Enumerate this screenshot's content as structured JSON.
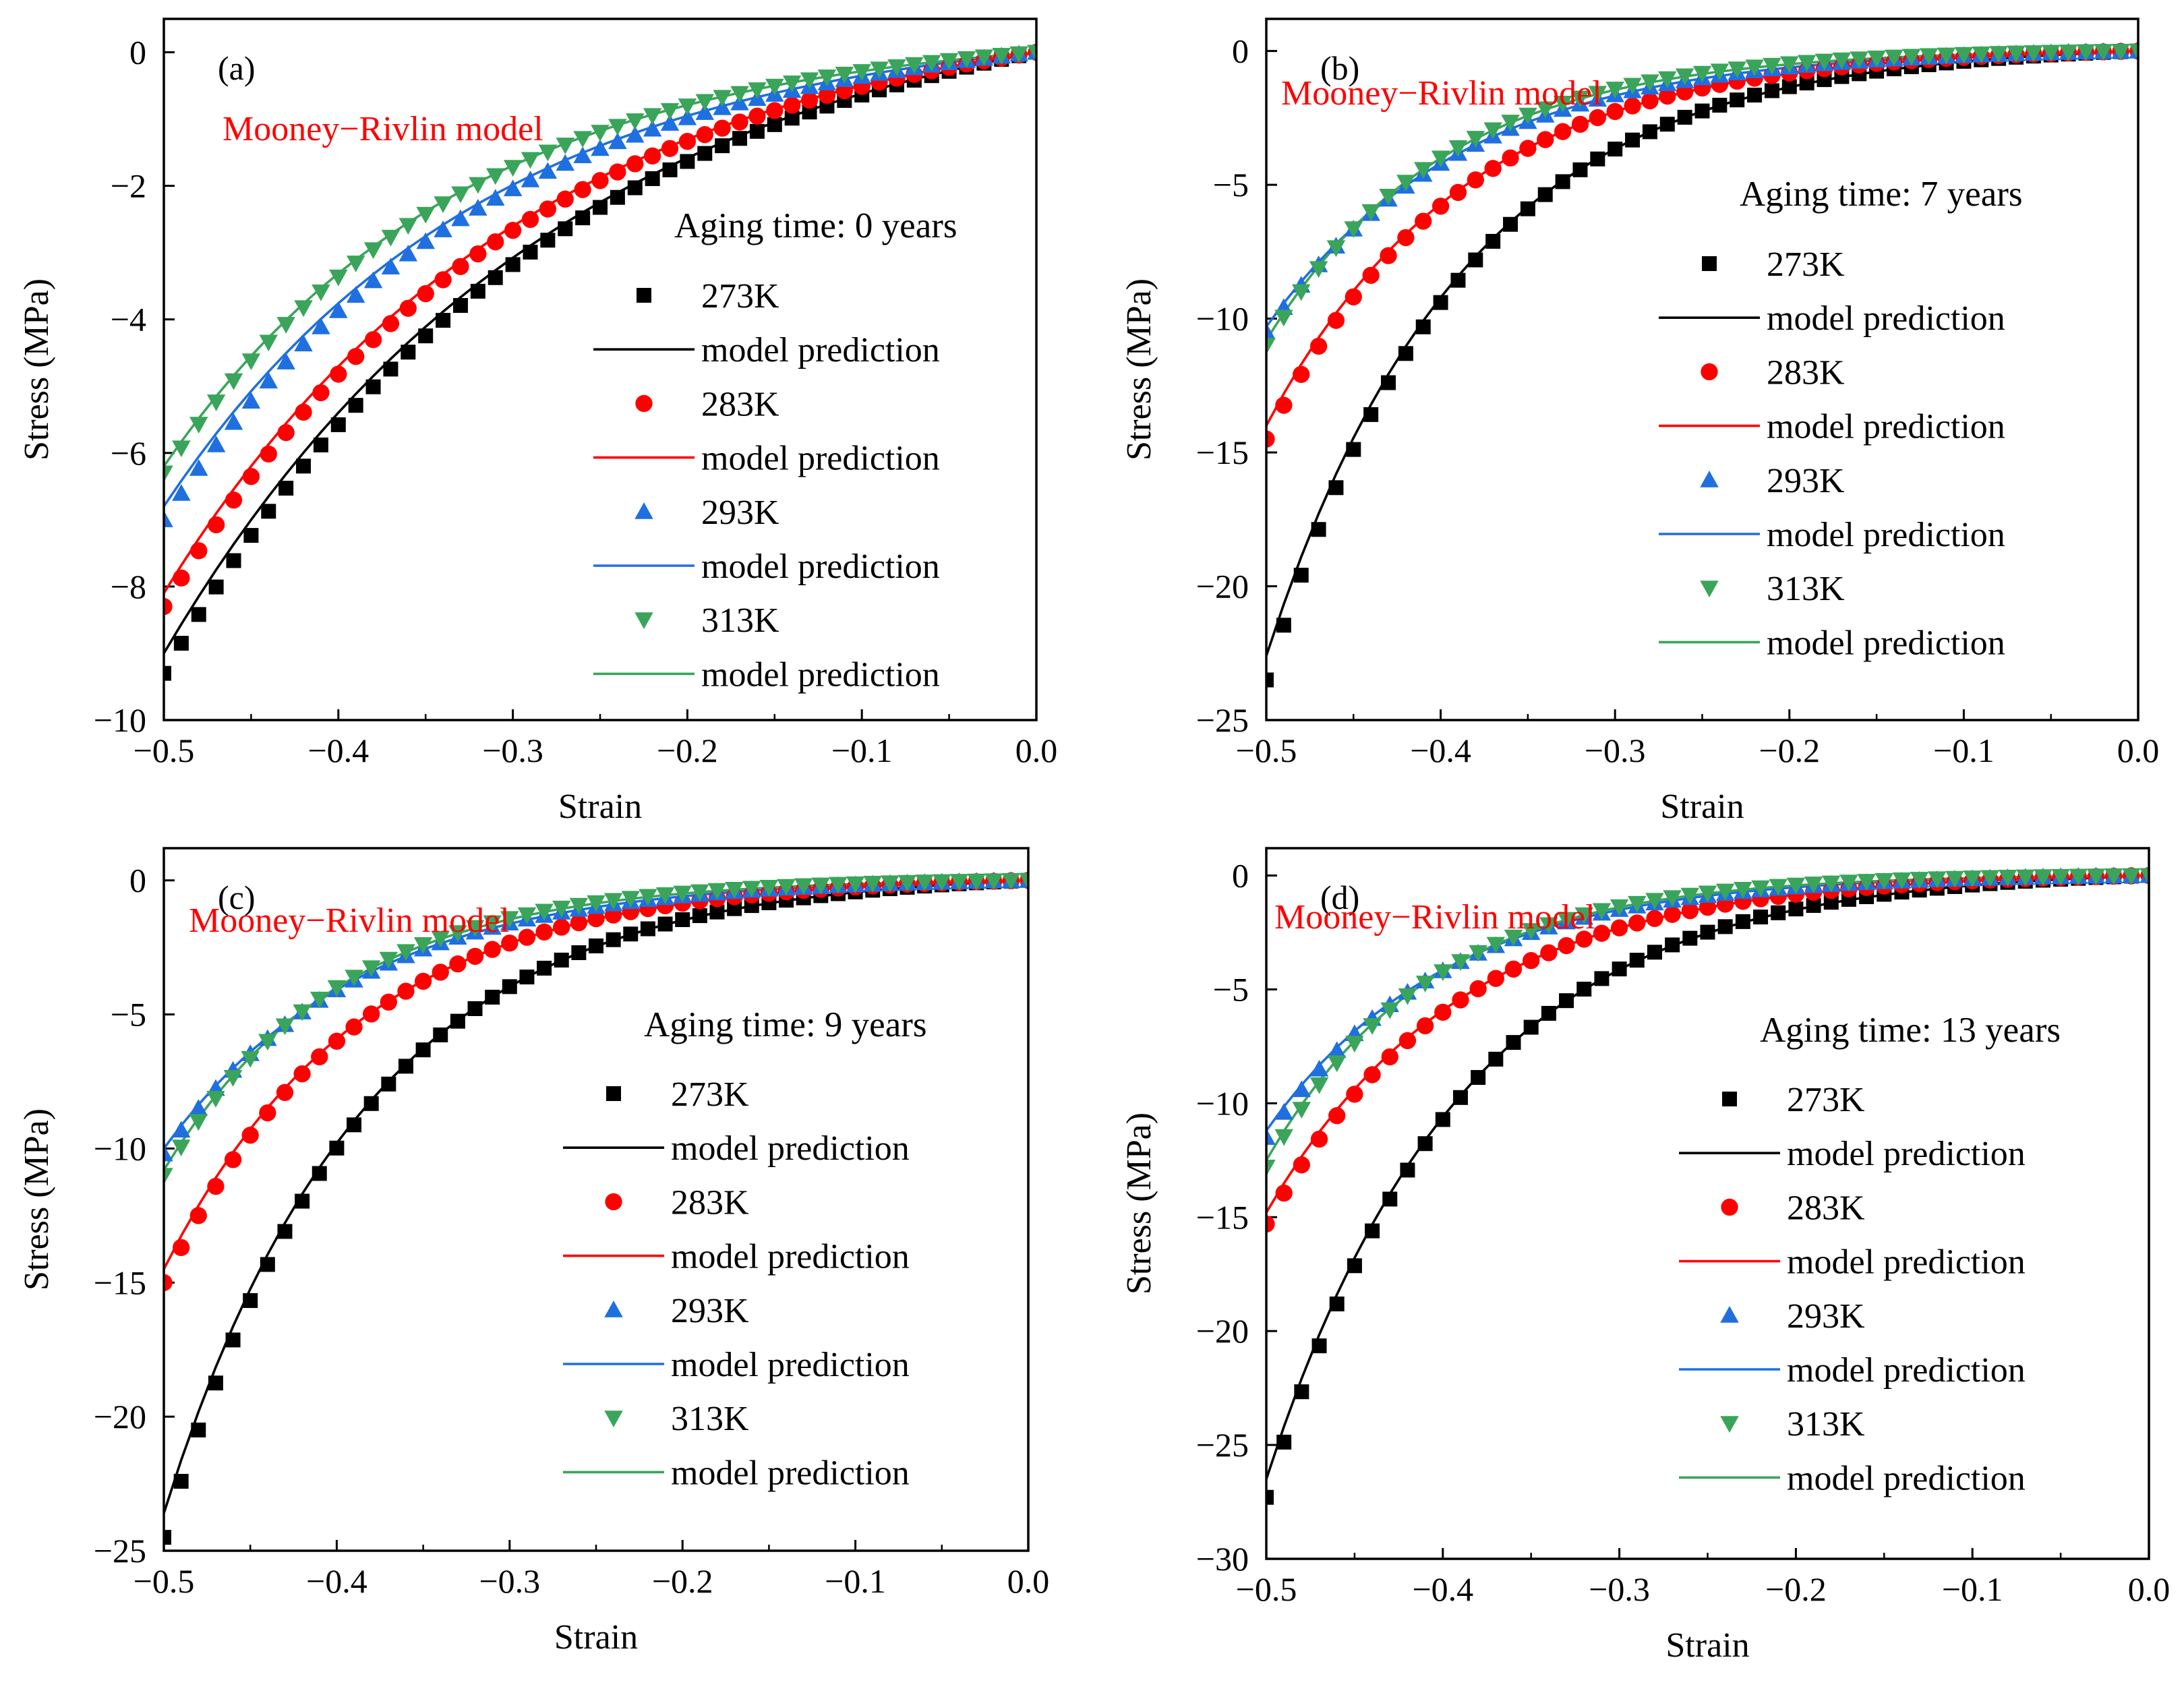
{
  "figure": {
    "common": {
      "xlabel": "Strain",
      "ylabel": "Stress (MPa)",
      "model_label": "Mooney−Rivlin model",
      "xlim": [
        -0.5,
        0.0
      ],
      "xticks": [
        -0.5,
        -0.4,
        -0.3,
        -0.2,
        -0.1,
        0.0
      ],
      "temperatures": [
        "273K",
        "283K",
        "293K",
        "313K"
      ],
      "prediction_label": "model prediction",
      "colors": {
        "273K": "#000000",
        "283K": "#ff0000",
        "293K": "#1f6fe0",
        "313K": "#3aa55a",
        "annotation": "#ff0000"
      },
      "markers": {
        "273K": "square",
        "283K": "circle",
        "293K": "triangle-up",
        "313K": "triangle-down"
      }
    },
    "strain_points": [
      -0.5,
      -0.49,
      -0.48,
      -0.47,
      -0.46,
      -0.45,
      -0.44,
      -0.43,
      -0.42,
      -0.41,
      -0.4,
      -0.39,
      -0.38,
      -0.37,
      -0.36,
      -0.35,
      -0.34,
      -0.33,
      -0.32,
      -0.31,
      -0.3,
      -0.29,
      -0.28,
      -0.27,
      -0.26,
      -0.25,
      -0.24,
      -0.23,
      -0.22,
      -0.21,
      -0.2,
      -0.19,
      -0.18,
      -0.17,
      -0.16,
      -0.15,
      -0.14,
      -0.13,
      -0.12,
      -0.11,
      -0.1,
      -0.09,
      -0.08,
      -0.07,
      -0.06,
      -0.05,
      -0.04,
      -0.03,
      -0.02,
      -0.01,
      0.0
    ]
  },
  "chart_data": [
    {
      "type": "scatter",
      "panel_label": "(a)",
      "title": "Aging time: 0 years",
      "xlabel": "Strain",
      "ylabel": "Stress (MPa)",
      "xlim": [
        -0.5,
        0.0
      ],
      "ylim": [
        -10,
        0.5
      ],
      "yticks": [
        0,
        -2,
        -4,
        -6,
        -8,
        -10
      ],
      "series": [
        {
          "name": "273K",
          "endpoint": -9.3,
          "shape": 2.2,
          "model_endpoint": -9.0,
          "model_shape": 2.2
        },
        {
          "name": "283K",
          "endpoint": -8.3,
          "shape": 2.4,
          "model_endpoint": -8.1,
          "model_shape": 2.4
        },
        {
          "name": "293K",
          "endpoint": -7.0,
          "shape": 2.7,
          "model_endpoint": -6.8,
          "model_shape": 2.7
        },
        {
          "name": "313K",
          "endpoint": -6.3,
          "shape": 2.9,
          "model_endpoint": -6.2,
          "model_shape": 2.9
        }
      ]
    },
    {
      "type": "scatter",
      "panel_label": "(b)",
      "title": "Aging time: 7 years",
      "xlabel": "Strain",
      "ylabel": "Stress (MPa)",
      "xlim": [
        -0.5,
        0.0
      ],
      "ylim": [
        -25,
        1.2
      ],
      "yticks": [
        0,
        -5,
        -10,
        -15,
        -20,
        -25
      ],
      "series": [
        {
          "name": "273K",
          "endpoint": -23.5,
          "shape": 4.5,
          "model_endpoint": -22.6,
          "model_shape": 4.4
        },
        {
          "name": "283K",
          "endpoint": -14.5,
          "shape": 4.5,
          "model_endpoint": -14.0,
          "model_shape": 4.4
        },
        {
          "name": "293K",
          "endpoint": -10.5,
          "shape": 4.5,
          "model_endpoint": -10.3,
          "model_shape": 4.4
        },
        {
          "name": "313K",
          "endpoint": -11.0,
          "shape": 5.0,
          "model_endpoint": -10.8,
          "model_shape": 4.9
        }
      ]
    },
    {
      "type": "scatter",
      "panel_label": "(c)",
      "title": "Aging time: 9 years",
      "xlabel": "Strain",
      "ylabel": "Stress (MPa)",
      "xlim": [
        -0.5,
        0.0
      ],
      "ylim": [
        -25,
        1.2
      ],
      "yticks": [
        0,
        -5,
        -10,
        -15,
        -20,
        -25
      ],
      "series": [
        {
          "name": "273K",
          "endpoint": -24.5,
          "shape": 4.4,
          "model_endpoint": -23.6,
          "model_shape": 4.3
        },
        {
          "name": "283K",
          "endpoint": -15.0,
          "shape": 4.5,
          "model_endpoint": -14.5,
          "model_shape": 4.4
        },
        {
          "name": "293K",
          "endpoint": -10.2,
          "shape": 4.5,
          "model_endpoint": -10.0,
          "model_shape": 4.4
        },
        {
          "name": "313K",
          "endpoint": -11.0,
          "shape": 5.0,
          "model_endpoint": -10.8,
          "model_shape": 4.9
        }
      ]
    },
    {
      "type": "scatter",
      "panel_label": "(d)",
      "title": "Aging time: 13 years",
      "xlabel": "Strain",
      "ylabel": "Stress (MPa)",
      "xlim": [
        -0.5,
        0.0
      ],
      "ylim": [
        -30,
        1.2
      ],
      "yticks": [
        0,
        -5,
        -10,
        -15,
        -20,
        -25,
        -30
      ],
      "series": [
        {
          "name": "273K",
          "endpoint": -27.3,
          "shape": 4.6,
          "model_endpoint": -26.5,
          "model_shape": 4.5
        },
        {
          "name": "283K",
          "endpoint": -15.3,
          "shape": 4.6,
          "model_endpoint": -14.8,
          "model_shape": 4.5
        },
        {
          "name": "293K",
          "endpoint": -11.5,
          "shape": 5.0,
          "model_endpoint": -11.2,
          "model_shape": 4.9
        },
        {
          "name": "313K",
          "endpoint": -12.8,
          "shape": 5.5,
          "model_endpoint": -12.5,
          "model_shape": 5.4
        }
      ]
    }
  ]
}
